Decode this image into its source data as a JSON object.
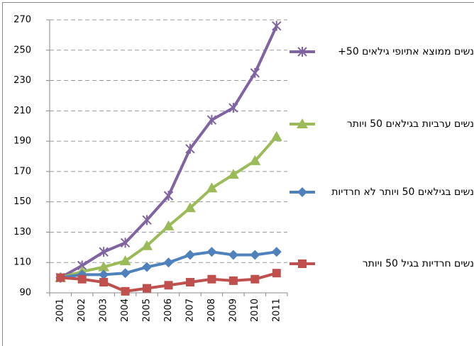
{
  "chart_data": {
    "type": "line",
    "categories": [
      "2001",
      "2002",
      "2003",
      "2004",
      "2005",
      "2006",
      "2007",
      "2008",
      "2009",
      "2010",
      "2011"
    ],
    "series": [
      {
        "name": "נשים ממוצא אתיופי גילאים 50+",
        "color": "#8064a2",
        "marker": "star",
        "values": [
          100,
          108,
          117,
          123,
          138,
          154,
          185,
          204,
          212,
          235,
          266
        ]
      },
      {
        "name": "נשים ערביות בגילאים 50 ויותר",
        "color": "#9bbb59",
        "marker": "triangle",
        "values": [
          100,
          104,
          107,
          111,
          121,
          134,
          146,
          159,
          168,
          177,
          193
        ]
      },
      {
        "name": "נשים בגילאים 50 ויותר לא חרדיות",
        "color": "#4f81bd",
        "marker": "diamond",
        "values": [
          100,
          102,
          102,
          103,
          107,
          110,
          115,
          117,
          115,
          115,
          117
        ]
      },
      {
        "name": "נשים חרדיות בגיל 50 ויותר",
        "color": "#c0504d",
        "marker": "square",
        "values": [
          100,
          99,
          97,
          91,
          93,
          95,
          97,
          99,
          98,
          99,
          103
        ]
      }
    ],
    "ylim": [
      90,
      270
    ],
    "yticks": [
      90,
      110,
      130,
      150,
      170,
      190,
      210,
      230,
      250,
      270
    ],
    "grid": true,
    "legend": "right"
  }
}
